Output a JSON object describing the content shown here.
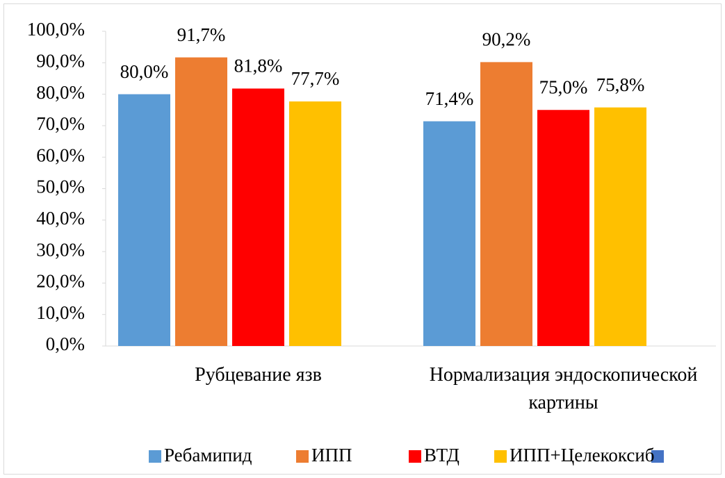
{
  "chart_data": {
    "type": "bar",
    "categories": [
      "Рубцевание язв",
      "Нормализация эндоскопической картины"
    ],
    "series": [
      {
        "name": "Ребамипид",
        "color": "#5b9bd5",
        "values": [
          80.0,
          71.4
        ],
        "value_labels": [
          "80,0%",
          "71,4%"
        ]
      },
      {
        "name": "ИПП",
        "color": "#ed7d31",
        "values": [
          91.7,
          90.2
        ],
        "value_labels": [
          "91,7%",
          "90,2%"
        ]
      },
      {
        "name": "ВТД",
        "color": "#ff0000",
        "values": [
          81.8,
          75.0
        ],
        "value_labels": [
          "81,8%",
          "75,0%"
        ]
      },
      {
        "name": "ИПП+Целекоксиб",
        "color": "#ffc000",
        "values": [
          77.7,
          75.8
        ],
        "value_labels": [
          "77,7%",
          "75,8%"
        ]
      }
    ],
    "ylim": [
      0,
      100
    ],
    "yticks": [
      {
        "value": 0,
        "label": "0,0%"
      },
      {
        "value": 10,
        "label": "10,0%"
      },
      {
        "value": 20,
        "label": "20,0%"
      },
      {
        "value": 30,
        "label": "30,0%"
      },
      {
        "value": 40,
        "label": "40,0%"
      },
      {
        "value": 50,
        "label": "50,0%"
      },
      {
        "value": 60,
        "label": "60,0%"
      },
      {
        "value": 70,
        "label": "70,0%"
      },
      {
        "value": 80,
        "label": "80,0%"
      },
      {
        "value": 90,
        "label": "90,0%"
      },
      {
        "value": 100,
        "label": "100,0%"
      }
    ],
    "grid": false,
    "legend": "bottom"
  }
}
